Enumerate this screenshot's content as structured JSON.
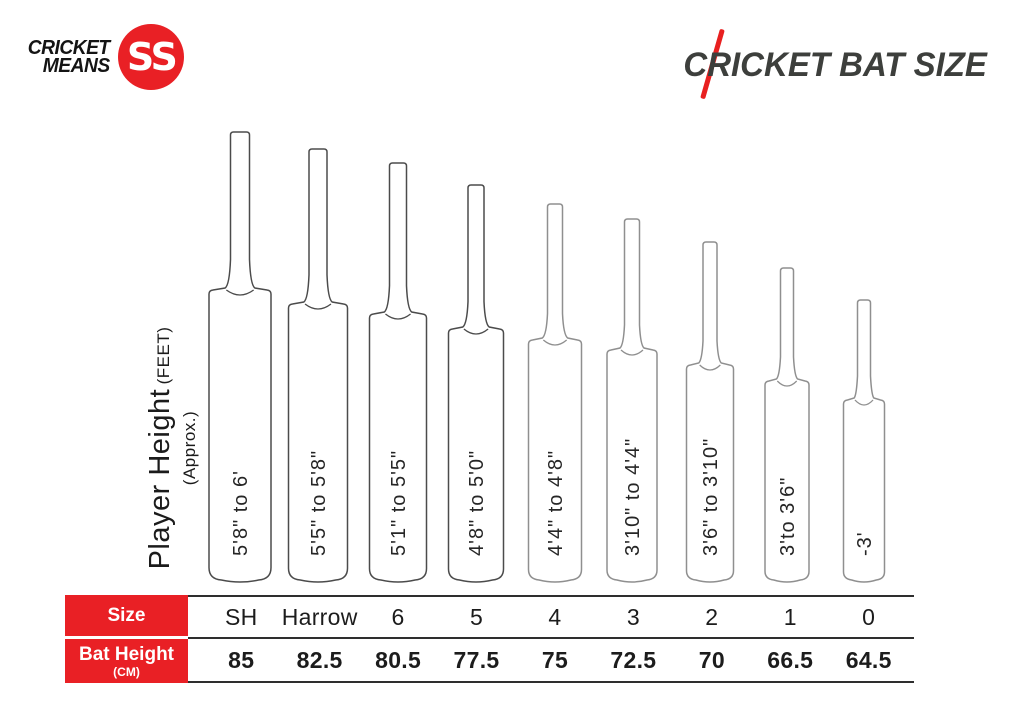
{
  "header": {
    "logo": {
      "line1": "CRICKET",
      "line2": "MEANS",
      "badge": "SS"
    },
    "title": "CRICKET BAT SIZE"
  },
  "axis": {
    "main": "Player Height",
    "unit": "(FEET)",
    "approx": "(Approx.)"
  },
  "table": {
    "size_label": "Size",
    "height_label": "Bat Height",
    "height_unit": "(CM)"
  },
  "colors": {
    "accent_red": "#E92025",
    "title_gray": "#3D3F3C",
    "bat_outline_dark": "#4B4B4B",
    "bat_outline_light": "#8F8F8F",
    "table_line": "#2E2E2E"
  },
  "chart_data": {
    "type": "pictorial-bar",
    "title": "CRICKET BAT SIZE",
    "xlabel": "Size",
    "ylabel": "Player Height (FEET) (Approx.)",
    "categories": [
      "SH",
      "Harrow",
      "6",
      "5",
      "4",
      "3",
      "2",
      "1",
      "0"
    ],
    "series": [
      {
        "name": "Player Height (FEET, Approx.)",
        "values": [
          "5'8\" to 6'",
          "5'5\" to 5'8\"",
          "5'1\" to 5'5\"",
          "4'8\" to 5'0\"",
          "4'4\" to 4'8\"",
          "3'10\" to 4'4\"",
          "3'6\" to 3'10\"",
          "3'to 3'6\"",
          "-3'"
        ]
      },
      {
        "name": "Bat Height (CM)",
        "values": [
          85,
          82.5,
          80.5,
          77.5,
          75,
          72.5,
          70,
          66.5,
          64.5
        ]
      }
    ],
    "legend_position": "none",
    "grid": false
  }
}
